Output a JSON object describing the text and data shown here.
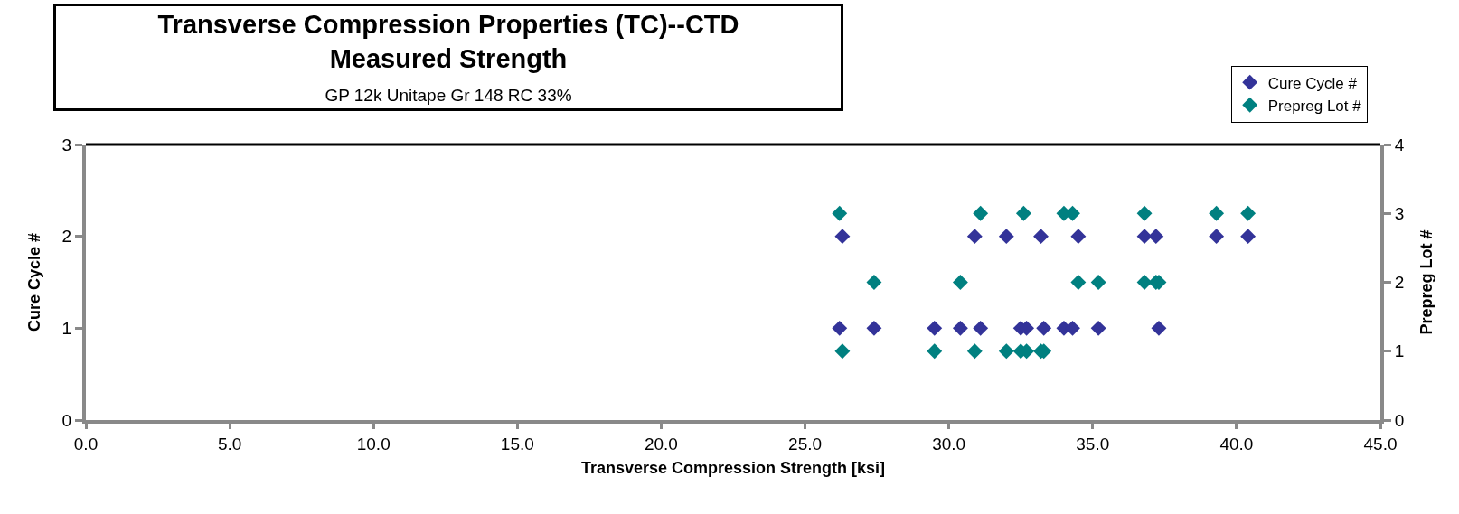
{
  "chart_data": {
    "type": "scatter",
    "title": "Transverse Compression Properties (TC)--CTD\nMeasured Strength",
    "subtitle": "GP 12k Unitape Gr 148 RC 33%",
    "xlabel": "Transverse Compression Strength [ksi]",
    "ylabel": "Cure Cycle #",
    "y2label": "Prepreg Lot #",
    "series": [
      {
        "name": "Cure Cycle #",
        "color": "#333399",
        "x": [
          26.3,
          30.9,
          32.0,
          33.2,
          34.5,
          36.8,
          37.2,
          39.3,
          40.4,
          26.2,
          27.4,
          29.5,
          30.4,
          31.1,
          32.5,
          32.7,
          33.3,
          34.0,
          34.3,
          35.2,
          37.3
        ],
        "values": [
          2,
          2,
          2,
          2,
          2,
          2,
          2,
          2,
          2,
          1,
          1,
          1,
          1,
          1,
          1,
          1,
          1,
          1,
          1,
          1,
          1
        ]
      },
      {
        "name": "Prepreg Lot #",
        "color": "#008080",
        "axis": "y2",
        "x": [
          26.2,
          31.1,
          32.6,
          34.0,
          34.3,
          36.8,
          39.3,
          40.4,
          27.4,
          30.4,
          34.5,
          35.2,
          36.8,
          37.2,
          37.3,
          26.3,
          29.5,
          30.9,
          32.0,
          32.5,
          32.7,
          33.2,
          33.3
        ],
        "values": [
          3,
          3,
          3,
          3,
          3,
          3,
          3,
          3,
          2,
          2,
          2,
          2,
          2,
          2,
          2,
          1,
          1,
          1,
          1,
          1,
          1,
          1,
          1
        ]
      }
    ],
    "xlim": [
      0,
      45
    ],
    "xticks": [
      {
        "value": 0,
        "label": "0.0"
      },
      {
        "value": 5,
        "label": "5.0"
      },
      {
        "value": 10,
        "label": "10.0"
      },
      {
        "value": 15,
        "label": "15.0"
      },
      {
        "value": 20,
        "label": "20.0"
      },
      {
        "value": 25,
        "label": "25.0"
      },
      {
        "value": 30,
        "label": "30.0"
      },
      {
        "value": 35,
        "label": "35.0"
      },
      {
        "value": 40,
        "label": "40.0"
      },
      {
        "value": 45,
        "label": "45.0"
      }
    ],
    "ylim": [
      0,
      3
    ],
    "yticks": [
      0,
      1,
      2,
      3
    ],
    "y2lim": [
      0,
      4
    ],
    "y2ticks": [
      0,
      1,
      2,
      3,
      4
    ],
    "marker": "diamond",
    "legend": "top right"
  }
}
